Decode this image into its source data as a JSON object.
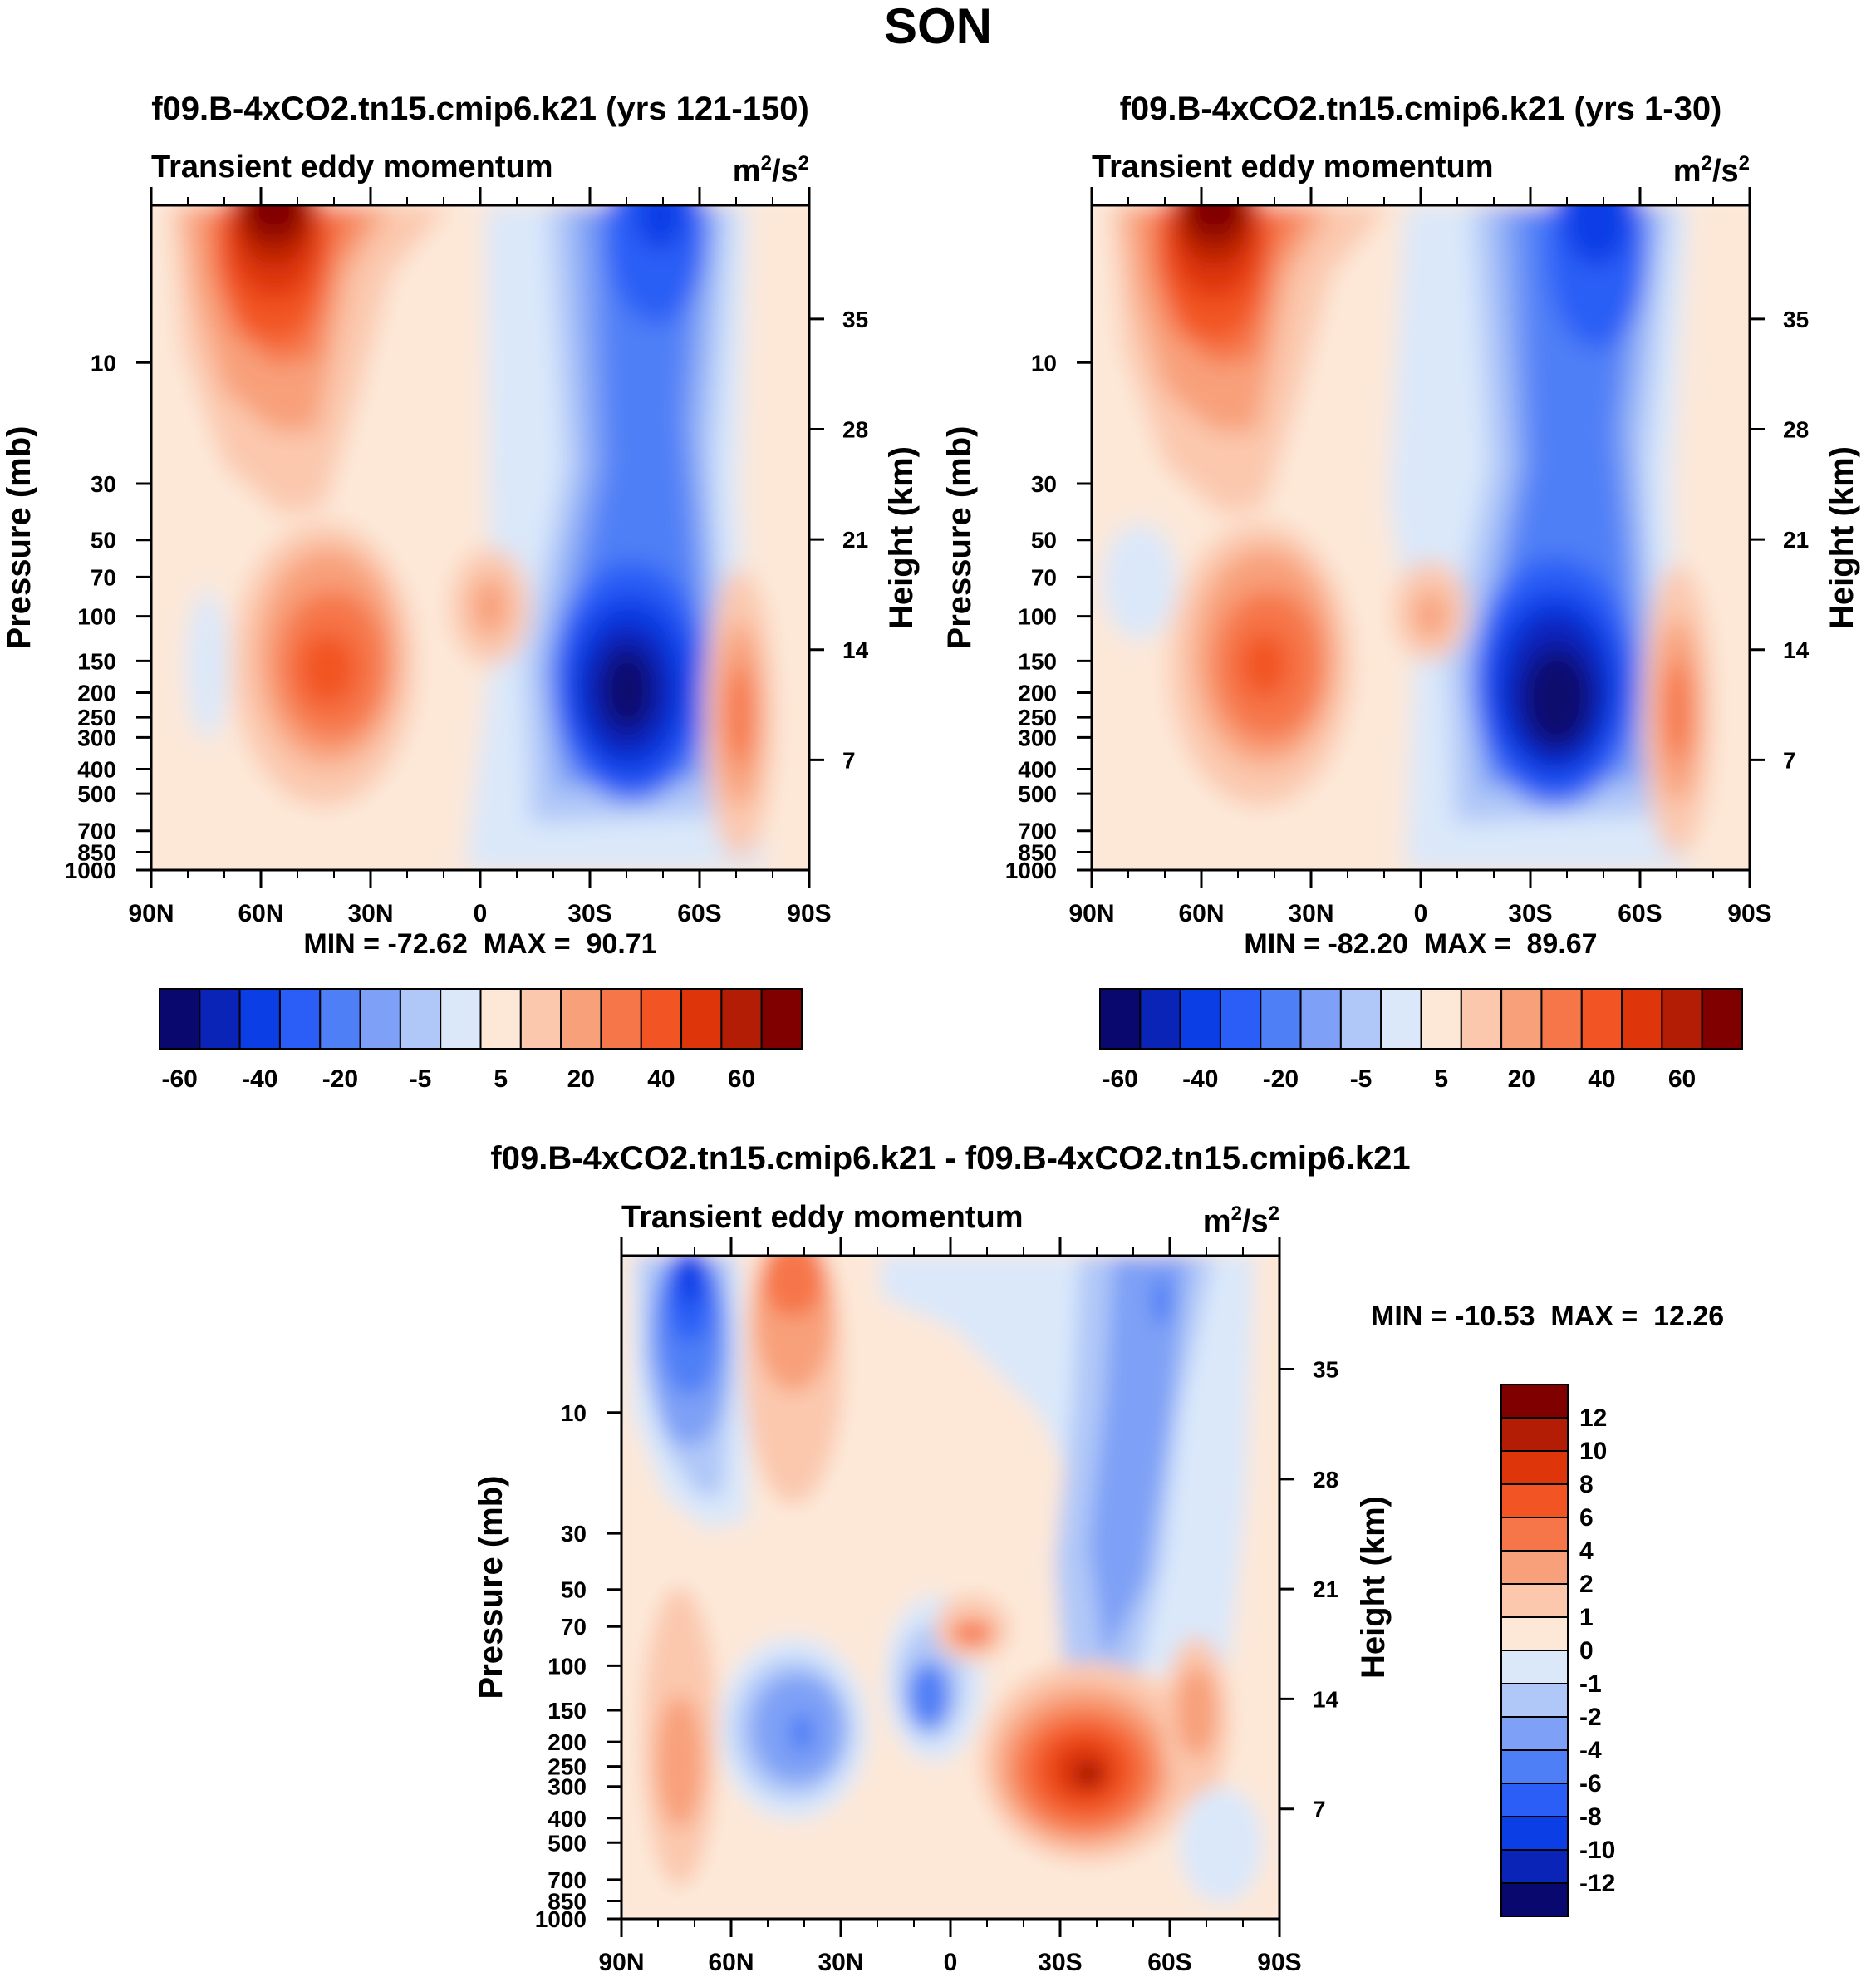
{
  "suptitle": "SON",
  "common": {
    "variable": "Transient eddy momentum",
    "units_base": "m",
    "units_sup1": "2",
    "units_mid": "/s",
    "units_sup2": "2",
    "ylabel_left": "Pressure (mb)",
    "ylabel_right": "Height (km)"
  },
  "chart_data": [
    {
      "type": "contour",
      "panel": "top-left",
      "title": "f09.B-4xCO2.tn15.cmip6.k21 (yrs 121-150)",
      "variable": "Transient eddy momentum",
      "units": "m2/s2",
      "x_ticks": [
        "90N",
        "60N",
        "30N",
        "0",
        "30S",
        "60S",
        "90S"
      ],
      "x_range": [
        90,
        -90
      ],
      "pressure_ticks": [
        10,
        30,
        50,
        70,
        100,
        150,
        200,
        250,
        300,
        400,
        500,
        700,
        850,
        1000
      ],
      "height_ticks": [
        35,
        28,
        21,
        14,
        7
      ],
      "ylabel_left": "Pressure (mb)",
      "ylabel_right": "Height (km)",
      "min": "-72.62",
      "max": "90.71",
      "stats_text": "MIN = -72.62  MAX =  90.71",
      "features": [
        {
          "lat": 55,
          "p": 2,
          "value": 90,
          "note": "stratospheric positive jet NH"
        },
        {
          "lat": 40,
          "p": 210,
          "value": 55,
          "note": "upper-tropospheric positive max NH"
        },
        {
          "lat": -40,
          "p": 230,
          "value": -72,
          "note": "upper-tropospheric negative min SH"
        },
        {
          "lat": -48,
          "p": 2,
          "value": -45,
          "note": "stratospheric negative SH"
        },
        {
          "lat": -68,
          "p": 250,
          "value": 25,
          "note": "positive near 60-75S"
        },
        {
          "lat": 0,
          "p": 120,
          "value": 12,
          "note": "small positive equator"
        }
      ]
    },
    {
      "type": "contour",
      "panel": "top-right",
      "title": "f09.B-4xCO2.tn15.cmip6.k21 (yrs 1-30)",
      "variable": "Transient eddy momentum",
      "units": "m2/s2",
      "x_ticks": [
        "90N",
        "60N",
        "30N",
        "0",
        "30S",
        "60S",
        "90S"
      ],
      "x_range": [
        90,
        -90
      ],
      "pressure_ticks": [
        10,
        30,
        50,
        70,
        100,
        150,
        200,
        250,
        300,
        400,
        500,
        700,
        850,
        1000
      ],
      "height_ticks": [
        35,
        28,
        21,
        14,
        7
      ],
      "ylabel_left": "Pressure (mb)",
      "ylabel_right": "Height (km)",
      "min": "-82.20",
      "max": "89.67",
      "stats_text": "MIN = -82.20  MAX =  89.67",
      "features": [
        {
          "lat": 55,
          "p": 2,
          "value": 89,
          "note": "stratospheric positive jet NH"
        },
        {
          "lat": 40,
          "p": 210,
          "value": 45,
          "note": "upper-tropospheric positive max NH"
        },
        {
          "lat": -40,
          "p": 250,
          "value": -82,
          "note": "upper-tropospheric negative min SH"
        },
        {
          "lat": -52,
          "p": 3,
          "value": -50,
          "note": "stratospheric negative SH"
        },
        {
          "lat": -68,
          "p": 250,
          "value": 25,
          "note": "positive near 60-75S"
        },
        {
          "lat": 0,
          "p": 150,
          "value": 8,
          "note": "small positive equator"
        }
      ]
    },
    {
      "type": "contour",
      "panel": "bottom",
      "title": "f09.B-4xCO2.tn15.cmip6.k21 - f09.B-4xCO2.tn15.cmip6.k21",
      "variable": "Transient eddy momentum",
      "units": "m2/s2",
      "x_ticks": [
        "90N",
        "60N",
        "30N",
        "0",
        "30S",
        "60S",
        "90S"
      ],
      "x_range": [
        90,
        -90
      ],
      "pressure_ticks": [
        10,
        30,
        50,
        70,
        100,
        150,
        200,
        250,
        300,
        400,
        500,
        700,
        850,
        1000
      ],
      "height_ticks": [
        35,
        28,
        21,
        14,
        7
      ],
      "ylabel_left": "Pressure (mb)",
      "ylabel_right": "Height (km)",
      "min": "-10.53",
      "max": "12.26",
      "stats_text": "MIN = -10.53  MAX =  12.26",
      "features": [
        {
          "lat": 70,
          "p": 4,
          "value": -10,
          "note": "negative stratosphere 70N"
        },
        {
          "lat": 45,
          "p": 3,
          "value": 6,
          "note": "positive stratosphere 45N"
        },
        {
          "lat": -55,
          "p": 8,
          "value": -5,
          "note": "negative stratosphere SH"
        },
        {
          "lat": 40,
          "p": 230,
          "value": -5,
          "note": "negative troposphere 40N"
        },
        {
          "lat": -38,
          "p": 290,
          "value": 12,
          "note": "positive max troposphere 38S"
        },
        {
          "lat": 5,
          "p": 180,
          "value": -6,
          "note": "negative near equator"
        },
        {
          "lat": -5,
          "p": 95,
          "value": 4,
          "note": "positive small equator"
        },
        {
          "lat": 72,
          "p": 300,
          "value": 3,
          "note": "positive 72N"
        },
        {
          "lat": -63,
          "p": 250,
          "value": 4,
          "note": "positive 63S"
        }
      ]
    }
  ],
  "colorbars": {
    "top": {
      "labels": [
        "-60",
        "-40",
        "-20",
        "-5",
        "5",
        "20",
        "40",
        "60"
      ],
      "colors": [
        "#08086e",
        "#0a24b8",
        "#0c3ee6",
        "#2a5ef6",
        "#4f7ff6",
        "#7ea0f6",
        "#b0c8f8",
        "#dae8fa",
        "#fde8d8",
        "#fbc8ae",
        "#f8a07a",
        "#f6764a",
        "#f25424",
        "#de360a",
        "#b31d05",
        "#800000"
      ]
    },
    "bottom": {
      "labels": [
        "12",
        "10",
        "8",
        "6",
        "4",
        "2",
        "1",
        "0",
        "-1",
        "-2",
        "-4",
        "-6",
        "-8",
        "-10",
        "-12"
      ],
      "colors": [
        "#800000",
        "#b31d05",
        "#de360a",
        "#f25424",
        "#f6764a",
        "#f8a07a",
        "#fbc8ae",
        "#fde8d8",
        "#dae8fa",
        "#b0c8f8",
        "#7ea0f6",
        "#4f7ff6",
        "#2a5ef6",
        "#0c3ee6",
        "#0a24b8",
        "#08086e"
      ]
    }
  }
}
